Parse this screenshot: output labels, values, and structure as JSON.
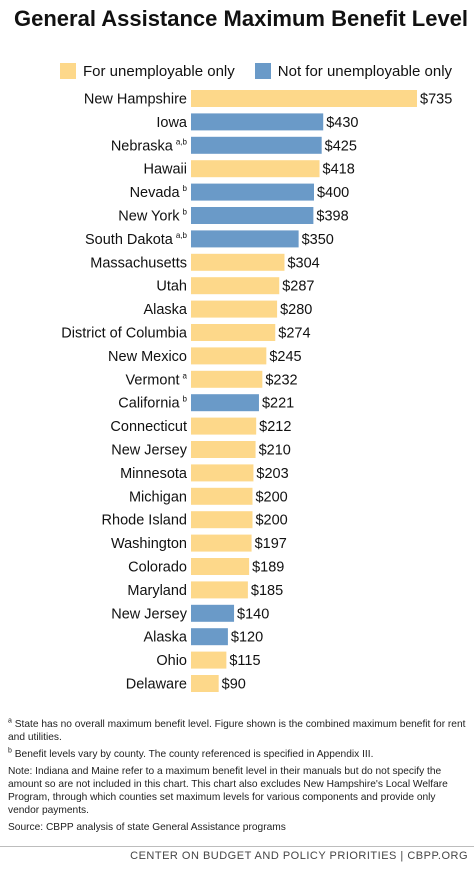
{
  "title": "General Assistance Maximum Benefit Level",
  "legend": [
    {
      "label": "For unemployable only",
      "color": "#FDD88A"
    },
    {
      "label": "Not for unemployable only",
      "color": "#6A9AC8"
    }
  ],
  "chart_data": {
    "type": "bar",
    "orientation": "horizontal",
    "title": "General Assistance Maximum Benefit Level",
    "categories": [
      "New Hampshire",
      "Iowa",
      "Nebraska",
      "Hawaii",
      "Nevada",
      "New York",
      "South Dakota",
      "Massachusetts",
      "Utah",
      "Alaska",
      "District of Columbia",
      "New Mexico",
      "Vermont",
      "California",
      "Connecticut",
      "New Jersey",
      "Minnesota",
      "Michigan",
      "Rhode Island",
      "Washington",
      "Colorado",
      "Maryland",
      "New Jersey",
      "Alaska",
      "Ohio",
      "Delaware"
    ],
    "footnote_marks": [
      "",
      "",
      "a,b",
      "",
      "b",
      "b",
      "a,b",
      "",
      "",
      "",
      "",
      "",
      "a",
      "b",
      "",
      "",
      "",
      "",
      "",
      "",
      "",
      "",
      "",
      "",
      "",
      ""
    ],
    "values": [
      735,
      430,
      425,
      418,
      400,
      398,
      350,
      304,
      287,
      280,
      274,
      245,
      232,
      221,
      212,
      210,
      203,
      200,
      200,
      197,
      189,
      185,
      140,
      120,
      115,
      90
    ],
    "value_labels": [
      "$735",
      "$430",
      "$425",
      "$418",
      "$400",
      "$398",
      "$350",
      "$304",
      "$287",
      "$280",
      "$274",
      "$245",
      "$232",
      "$221",
      "$212",
      "$210",
      "$203",
      "$200",
      "$200",
      "$197",
      "$189",
      "$185",
      "$140",
      "$120",
      "$115",
      "$90"
    ],
    "group": [
      "For unemployable only",
      "Not for unemployable only",
      "Not for unemployable only",
      "For unemployable only",
      "Not for unemployable only",
      "Not for unemployable only",
      "Not for unemployable only",
      "For unemployable only",
      "For unemployable only",
      "For unemployable only",
      "For unemployable only",
      "For unemployable only",
      "For unemployable only",
      "Not for unemployable only",
      "For unemployable only",
      "For unemployable only",
      "For unemployable only",
      "For unemployable only",
      "For unemployable only",
      "For unemployable only",
      "For unemployable only",
      "For unemployable only",
      "Not for unemployable only",
      "Not for unemployable only",
      "For unemployable only",
      "For unemployable only"
    ],
    "colors": {
      "For unemployable only": "#FDD88A",
      "Not for unemployable only": "#6A9AC8"
    },
    "xlim": [
      0,
      735
    ],
    "grid": false,
    "legend_position": "top"
  },
  "footnotes": {
    "a_mark": "a",
    "a_text": "State has no overall maximum benefit level. Figure shown is the combined maximum benefit for rent and utilities.",
    "b_mark": "b",
    "b_text": "Benefit levels vary by county. The county referenced is specified in Appendix III.",
    "note": "Note: Indiana and Maine refer to a maximum benefit level in their manuals but do not specify the amount so are not included in this chart. This chart also excludes New Hampshire's Local Welfare Program, through which counties set maximum levels for various components and provide only vendor payments.",
    "source": "Source: CBPP analysis of state General Assistance programs"
  },
  "credit": "CENTER ON BUDGET AND POLICY PRIORITIES | CBPP.ORG"
}
